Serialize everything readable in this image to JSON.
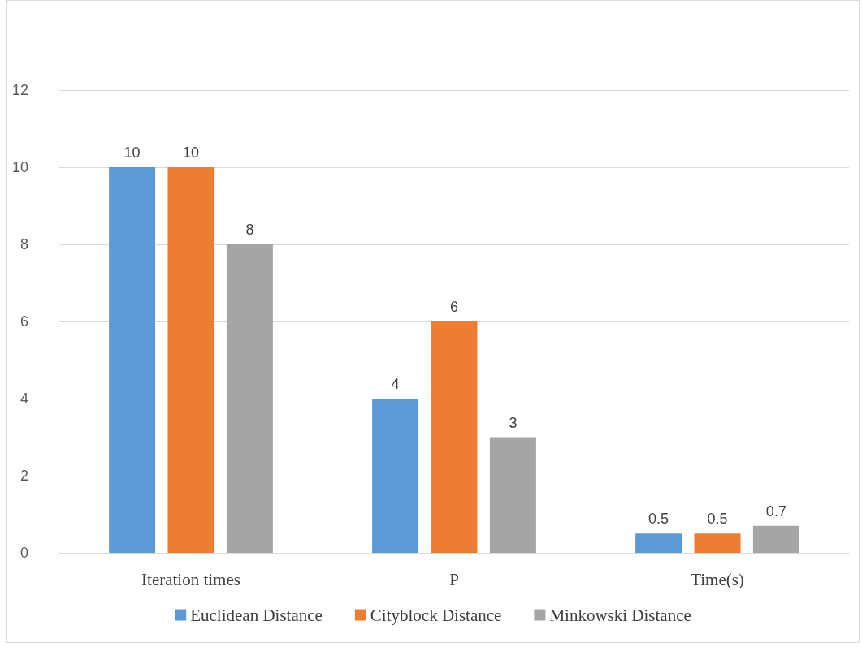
{
  "chart_data": {
    "type": "bar",
    "categories": [
      "Iteration times",
      "P",
      "Time(s)"
    ],
    "series": [
      {
        "name": "Euclidean Distance",
        "color": "#5b9bd5",
        "values": [
          10,
          4,
          0.5
        ]
      },
      {
        "name": "Cityblock Distance",
        "color": "#ed7d31",
        "values": [
          10,
          6,
          0.5
        ]
      },
      {
        "name": "Minkowski Distance",
        "color": "#a5a5a5",
        "values": [
          8,
          3,
          0.7
        ]
      }
    ],
    "ylim": [
      0,
      12
    ],
    "yticks": [
      0,
      2,
      4,
      6,
      8,
      10,
      12
    ],
    "grid": "y",
    "legend": "bottom",
    "data_labels": true
  }
}
